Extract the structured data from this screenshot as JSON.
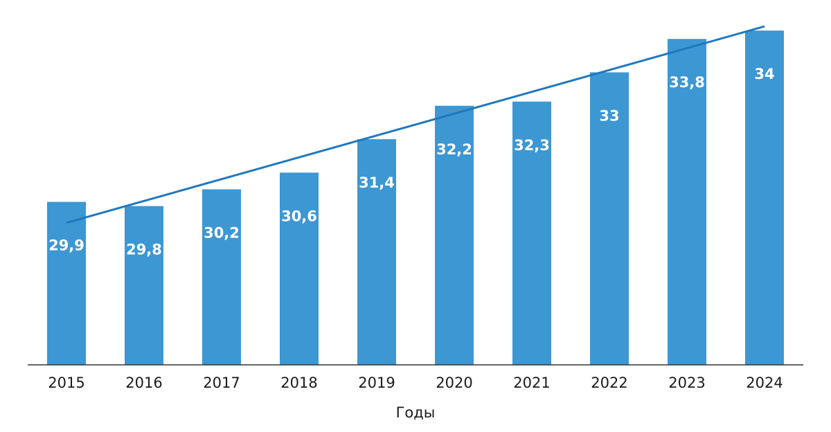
{
  "chart_data": {
    "type": "bar",
    "categories": [
      "2015",
      "2016",
      "2017",
      "2018",
      "2019",
      "2020",
      "2021",
      "2022",
      "2023",
      "2024"
    ],
    "values": [
      29.9,
      29.8,
      30.2,
      30.6,
      31.4,
      32.2,
      32.3,
      33,
      33.8,
      34
    ],
    "value_labels": [
      "29,9",
      "29,8",
      "30,2",
      "30,6",
      "31,4",
      "32,2",
      "32,3",
      "33",
      "33,8",
      "34"
    ],
    "title": "",
    "xlabel": "Годы",
    "ylabel": "",
    "ylim": [
      26,
      34.4
    ],
    "grid": false,
    "trendline": {
      "type": "linear",
      "start": 29.4,
      "end": 34.1
    },
    "colors": {
      "bar": "#3d97d3",
      "trend": "#1f78bf",
      "label": "#ffffff"
    }
  }
}
